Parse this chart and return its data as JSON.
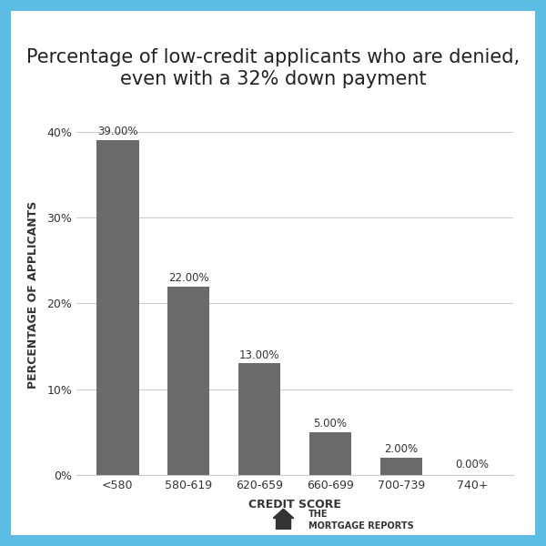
{
  "title": "Percentage of low-credit applicants who are denied,\neven with a 32% down payment",
  "xlabel": "CREDIT SCORE",
  "ylabel": "PERCENTAGE OF APPLICANTS",
  "categories": [
    "<580",
    "580-619",
    "620-659",
    "660-699",
    "700-739",
    "740+"
  ],
  "values": [
    39,
    22,
    13,
    5,
    2,
    0
  ],
  "labels": [
    "39.00%",
    "22.00%",
    "13.00%",
    "5.00%",
    "2.00%",
    "0.00%"
  ],
  "bar_color": "#6b6b6b",
  "yticks": [
    0,
    10,
    20,
    30,
    40
  ],
  "ytick_labels": [
    "0%",
    "10%",
    "20%",
    "30%",
    "40%"
  ],
  "ylim": [
    0,
    42
  ],
  "background_color": "#ffffff",
  "border_color": "#5bbce4",
  "title_fontsize": 15,
  "axis_label_fontsize": 9,
  "tick_fontsize": 9,
  "bar_label_fontsize": 8.5,
  "grid_color": "#cccccc",
  "footer_text": "THE\nMORTGAGE REPORTS",
  "footer_fontsize": 7
}
